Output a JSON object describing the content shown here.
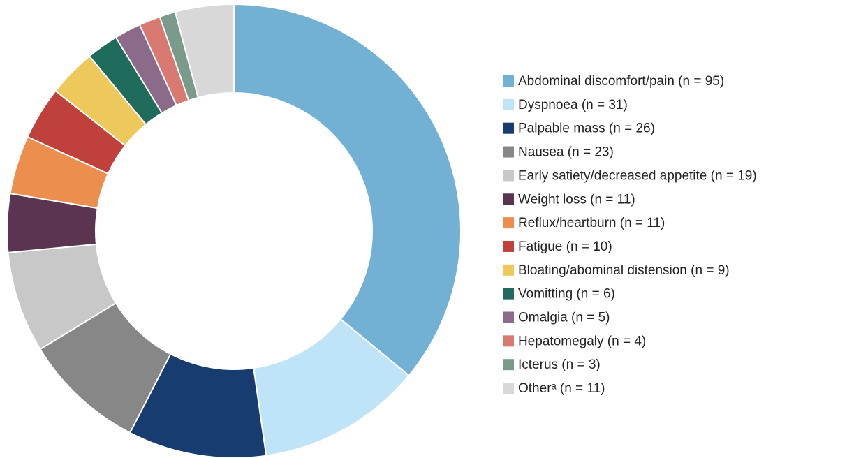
{
  "chart_data": {
    "type": "donut",
    "categories": [
      "Abdominal discomfort/pain (n = 95)",
      "Dyspnoea (n = 31)",
      "Palpable mass (n = 26)",
      "Nausea (n = 23)",
      "Early satiety/decreased appetite (n = 19)",
      "Weight loss (n = 11)",
      "Reflux/heartburn (n = 11)",
      "Fatigue (n = 10)",
      "Bloating/abominal distension (n = 9)",
      "Vomitting (n = 6)",
      "Omalgia (n = 5)",
      "Hepatomegaly (n = 4)",
      "Icterus (n = 3)",
      "Otherᵃ (n = 11)"
    ],
    "values": [
      95,
      31,
      26,
      23,
      19,
      11,
      11,
      10,
      9,
      6,
      5,
      4,
      3,
      11
    ],
    "colors": [
      "#72b1d3",
      "#bfe3f7",
      "#173c6f",
      "#878787",
      "#c8c8c8",
      "#5b3452",
      "#ec8f4e",
      "#c0403c",
      "#ecc95a",
      "#1f6b5c",
      "#8c6a8a",
      "#d87a72",
      "#7a9a8c",
      "#d8d8d8"
    ],
    "legend": "right"
  }
}
